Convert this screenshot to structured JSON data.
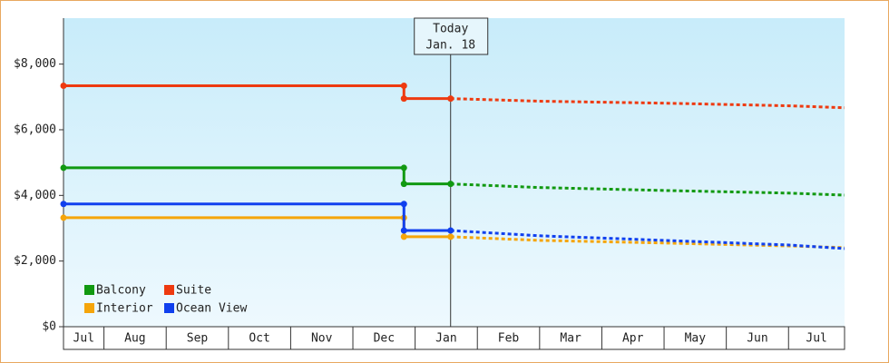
{
  "chart_data": {
    "type": "line",
    "step": true,
    "categories": [
      "Jul",
      "Aug",
      "Sep",
      "Oct",
      "Nov",
      "Dec",
      "Jan",
      "Feb",
      "Mar",
      "Apr",
      "May",
      "Jun",
      "Jul"
    ],
    "xlim": [
      0.35,
      12.9
    ],
    "xticks": [
      1,
      2,
      3,
      4,
      5,
      6,
      7,
      8,
      9,
      10,
      11,
      12
    ],
    "x": [
      0.35,
      5.82,
      5.82,
      6.57,
      8,
      10,
      12,
      12.9
    ],
    "ylim": [
      0,
      9400
    ],
    "yticks": [
      {
        "value": 0,
        "label": "$0"
      },
      {
        "value": 2000,
        "label": "$2,000"
      },
      {
        "value": 4000,
        "label": "$4,000"
      },
      {
        "value": 6000,
        "label": "$6,000"
      },
      {
        "value": 8000,
        "label": "$8,000"
      }
    ],
    "today": {
      "x": 6.57,
      "label": "Today",
      "date": "Jan. 18"
    },
    "legend": "lower left",
    "series": [
      {
        "name": "Balcony",
        "color": "#119911",
        "values": [
          4840,
          4840,
          4350,
          4350,
          4240,
          4150,
          4070,
          4010
        ]
      },
      {
        "name": "Suite",
        "color": "#ee3a10",
        "values": [
          7340,
          7340,
          6950,
          6950,
          6870,
          6810,
          6730,
          6670
        ]
      },
      {
        "name": "Interior",
        "color": "#f5a50a",
        "values": [
          3320,
          3320,
          2740,
          2740,
          2630,
          2550,
          2460,
          2410
        ]
      },
      {
        "name": "Ocean View",
        "color": "#1040ee",
        "values": [
          3740,
          3740,
          2930,
          2930,
          2770,
          2630,
          2490,
          2380
        ]
      }
    ]
  }
}
